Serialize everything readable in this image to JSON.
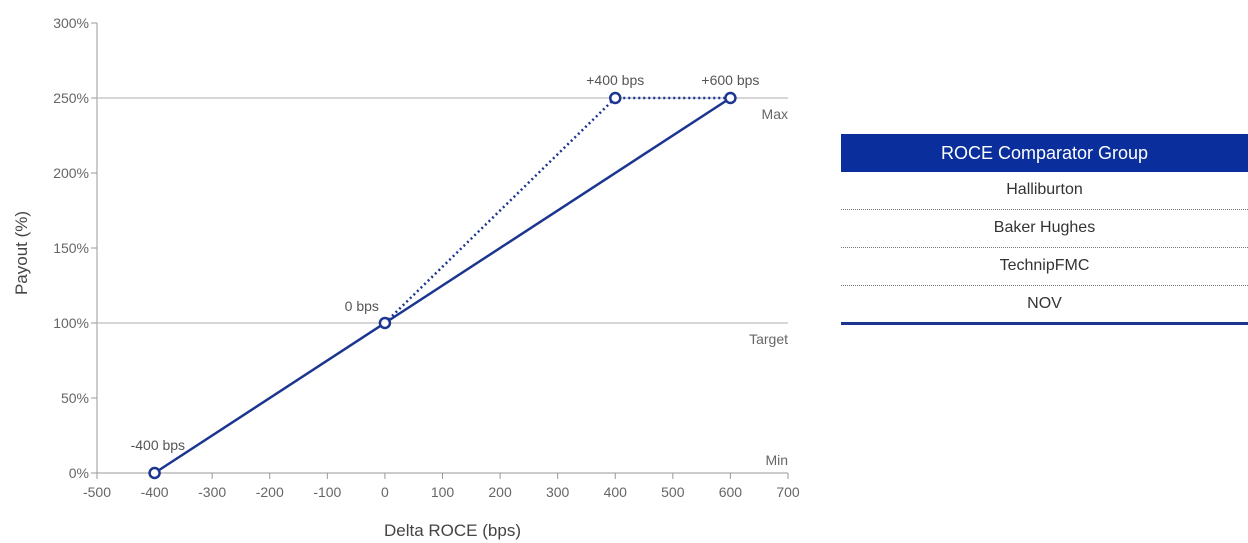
{
  "chart_data": {
    "type": "line",
    "xlabel": "Delta ROCE (bps)",
    "ylabel": "Payout (%)",
    "xlim": [
      -500,
      700
    ],
    "ylim": [
      0,
      300
    ],
    "x_ticks": [
      "-500",
      "-400",
      "-300",
      "-200",
      "-100",
      "0",
      "100",
      "200",
      "300",
      "400",
      "500",
      "600",
      "700"
    ],
    "y_ticks": [
      "0%",
      "50%",
      "100%",
      "150%",
      "200%",
      "250%",
      "300%"
    ],
    "series": [
      {
        "style": "solid",
        "color": "#1b3590",
        "points": [
          {
            "x": -400,
            "y": 0
          },
          {
            "x": 0,
            "y": 100
          },
          {
            "x": 600,
            "y": 250
          }
        ]
      },
      {
        "style": "dotted",
        "color": "#1b3590",
        "points": [
          {
            "x": 0,
            "y": 100
          },
          {
            "x": 400,
            "y": 250
          },
          {
            "x": 600,
            "y": 250
          }
        ]
      }
    ],
    "point_labels": [
      {
        "x": -400,
        "y": 0,
        "text": "-400 bps"
      },
      {
        "x": 0,
        "y": 100,
        "text": "0 bps"
      },
      {
        "x": 400,
        "y": 250,
        "text": "+400 bps"
      },
      {
        "x": 600,
        "y": 250,
        "text": "+600 bps"
      }
    ],
    "reference_lines": [
      {
        "y": 250,
        "label": "Max"
      },
      {
        "y": 100,
        "label": "Target"
      },
      {
        "y": 0,
        "label": "Min"
      }
    ]
  },
  "comparator_group": {
    "title": "ROCE Comparator Group",
    "members": [
      "Halliburton",
      "Baker Hughes",
      "TechnipFMC",
      "NOV"
    ]
  }
}
